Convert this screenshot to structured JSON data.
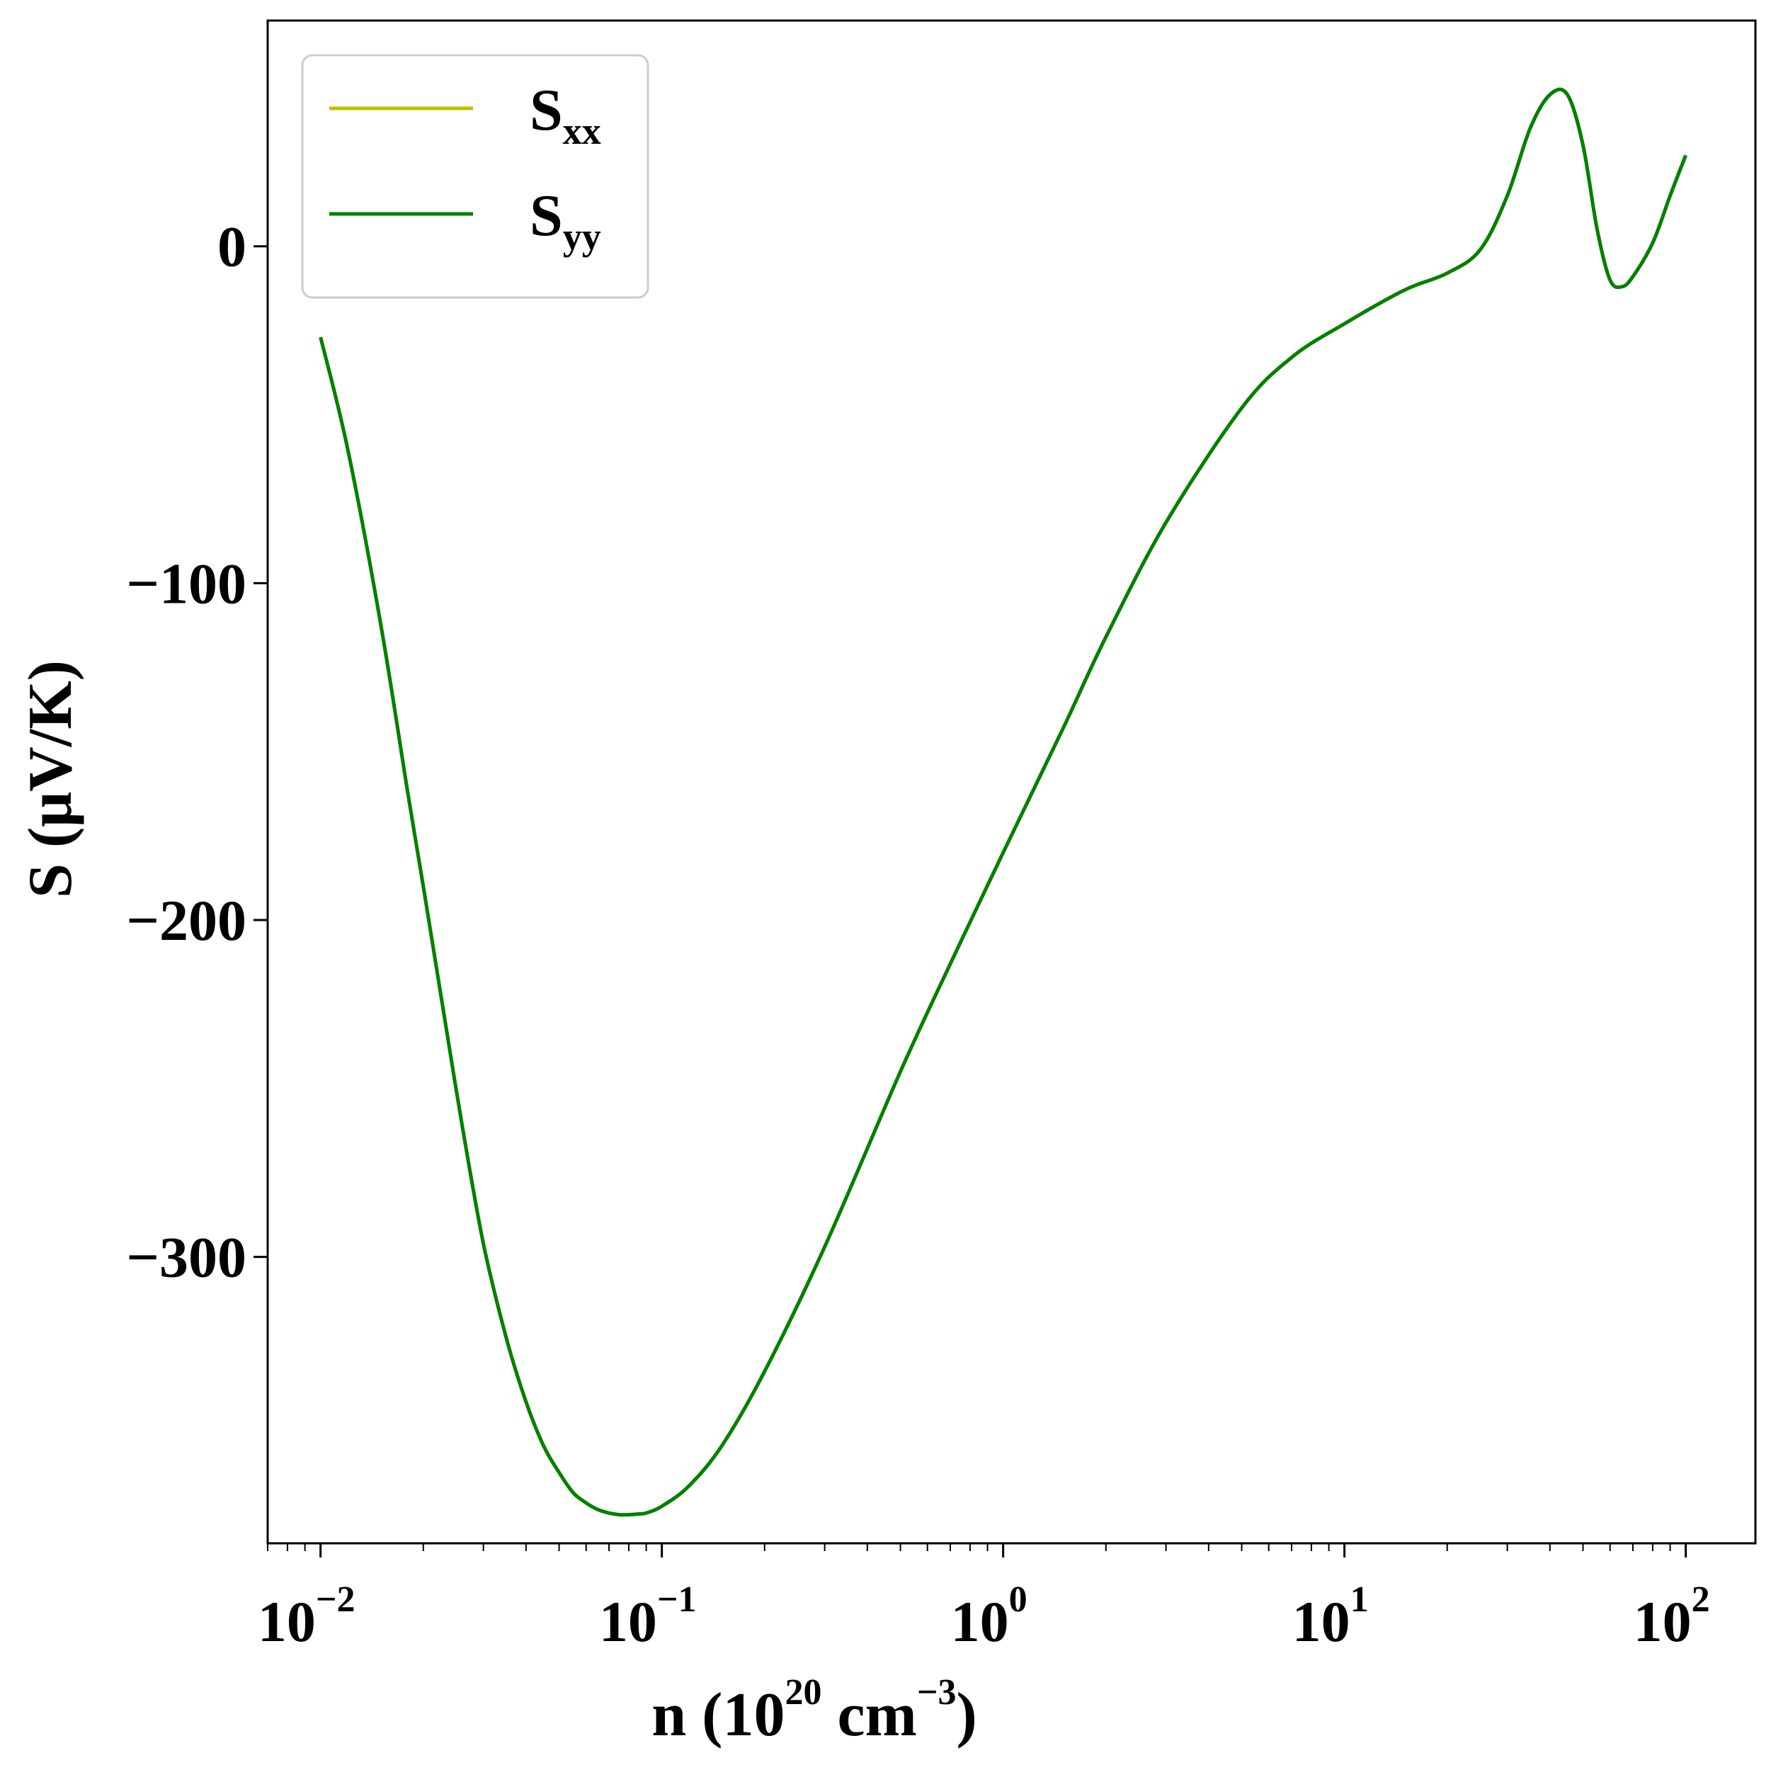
{
  "chart_data": {
    "type": "line",
    "xscale": "log",
    "xlim": [
      0.007,
      160
    ],
    "ylim": [
      -385,
      67
    ],
    "xlabel": {
      "base": "n (10",
      "exp1": "20",
      "mid": " cm",
      "exp2": "−3",
      "end": ")"
    },
    "ylabel": "S (μV/K)",
    "x_ticks": [
      {
        "value": 0.01,
        "base": "10",
        "exp": "−2"
      },
      {
        "value": 0.1,
        "base": "10",
        "exp": "−1"
      },
      {
        "value": 1,
        "base": "10",
        "exp": "0"
      },
      {
        "value": 10,
        "base": "10",
        "exp": "1"
      },
      {
        "value": 100,
        "base": "10",
        "exp": "2"
      }
    ],
    "y_ticks": [
      {
        "value": 0,
        "label": "0"
      },
      {
        "value": -100,
        "label": "−100"
      },
      {
        "value": -200,
        "label": "−200"
      },
      {
        "value": -300,
        "label": "−300"
      }
    ],
    "legend_position": "top-left",
    "series": [
      {
        "name": "S",
        "sub": "xx",
        "color": "#bfbf00",
        "x": [
          0.01,
          0.012,
          0.015,
          0.018,
          0.02,
          0.023,
          0.026,
          0.03,
          0.035,
          0.04,
          0.045,
          0.05,
          0.055,
          0.06,
          0.065,
          0.07,
          0.075,
          0.08,
          0.085,
          0.09,
          0.1,
          0.12,
          0.15,
          0.2,
          0.3,
          0.5,
          0.7,
          1,
          1.5,
          2,
          3,
          5,
          7,
          10,
          15,
          20,
          25,
          30,
          35,
          40,
          45,
          50,
          55,
          60,
          65,
          70,
          80,
          90,
          100
        ],
        "y": [
          -27,
          -60,
          -112,
          -162,
          -190,
          -228,
          -261,
          -296,
          -324,
          -343,
          -356,
          -364,
          -370,
          -373,
          -375,
          -376,
          -376.5,
          -376.5,
          -376.3,
          -376,
          -374,
          -368,
          -356,
          -334,
          -297,
          -245,
          -213,
          -180,
          -143,
          -116,
          -82,
          -48,
          -33,
          -23,
          -13,
          -8,
          -1,
          15,
          35,
          45,
          45,
          30,
          5,
          -10,
          -12,
          -9,
          1,
          15,
          27
        ]
      },
      {
        "name": "S",
        "sub": "yy",
        "color": "#008000",
        "x": [
          0.01,
          0.012,
          0.015,
          0.018,
          0.02,
          0.023,
          0.026,
          0.03,
          0.035,
          0.04,
          0.045,
          0.05,
          0.055,
          0.06,
          0.065,
          0.07,
          0.075,
          0.08,
          0.085,
          0.09,
          0.1,
          0.12,
          0.15,
          0.2,
          0.3,
          0.5,
          0.7,
          1,
          1.5,
          2,
          3,
          5,
          7,
          10,
          15,
          20,
          25,
          30,
          35,
          40,
          45,
          50,
          55,
          60,
          65,
          70,
          80,
          90,
          100
        ],
        "y": [
          -27,
          -60,
          -112,
          -162,
          -190,
          -228,
          -261,
          -296,
          -324,
          -343,
          -356,
          -364,
          -370,
          -373,
          -375,
          -376,
          -376.5,
          -376.5,
          -376.3,
          -376,
          -374,
          -368,
          -356,
          -334,
          -297,
          -245,
          -213,
          -180,
          -143,
          -116,
          -82,
          -48,
          -33,
          -23,
          -13,
          -8,
          -1,
          15,
          35,
          45,
          45,
          30,
          5,
          -10,
          -12,
          -9,
          1,
          15,
          27
        ]
      }
    ]
  }
}
